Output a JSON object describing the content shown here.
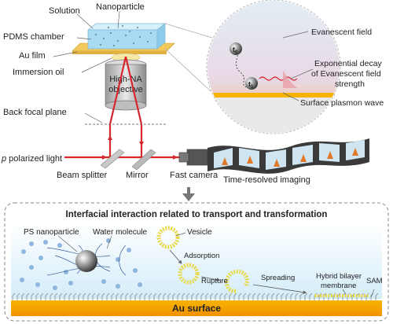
{
  "setup": {
    "solution": "Solution",
    "nanoparticle": "Nanoparticle",
    "pdms_chamber": "PDMS chamber",
    "au_film": "Au film",
    "immersion_oil": "Immersion oil",
    "objective_line1": "High-NA",
    "objective_line2": "objective",
    "back_focal_plane": "Back focal plane",
    "p_polarized_italic": "p",
    "p_polarized_rest": " polarized light",
    "beam_splitter": "Beam splitter",
    "mirror": "Mirror",
    "fast_camera": "Fast camera",
    "time_resolved": "Time-resolved imaging"
  },
  "inset": {
    "evanescent_field": "Evanescent field",
    "exp_decay_line1": "Exponential decay",
    "exp_decay_line2": "of Evanescent field",
    "exp_decay_line3": "strength",
    "surface_plasmon": "Surface plasmon wave",
    "t0_base": "t",
    "t0_sub": "0",
    "t1_base": "t",
    "t1_sub": "1"
  },
  "panel": {
    "title": "Interfacial interaction related to transport and transformation",
    "ps_nanoparticle": "PS nanoparticle",
    "water_molecule": "Water molecule",
    "vesicle": "Vesicle",
    "adsorption": "Adsorption",
    "rupture": "Rupture",
    "spreading": "Spreading",
    "hybrid_line1": "Hybrid bilayer",
    "hybrid_line2": "membrane",
    "sam": "SAM",
    "au_surface": "Au surface"
  },
  "colors": {
    "solution_blue": "#a9dcf3",
    "au_gold": "#f0c24f",
    "laser_red": "#d8262c",
    "orange_process": "#e07a2a",
    "vesicle_yellow": "#e8d84a"
  }
}
